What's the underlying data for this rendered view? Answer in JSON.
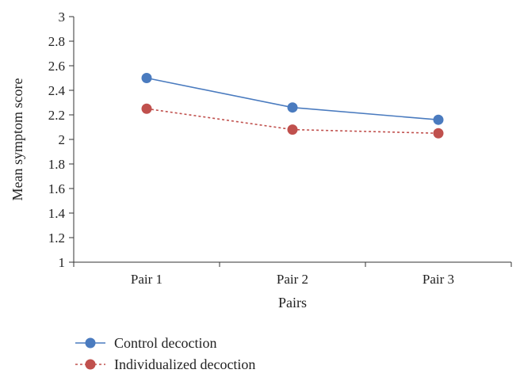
{
  "chart_data": {
    "type": "line",
    "title": "",
    "xlabel": "Pairs",
    "ylabel": "Mean symptom score",
    "categories": [
      "Pair 1",
      "Pair 2",
      "Pair 3"
    ],
    "ylim": [
      1,
      3
    ],
    "yticks": [
      "1",
      "1.2",
      "1.4",
      "1.6",
      "1.8",
      "2",
      "2.2",
      "2.4",
      "2.6",
      "2.8",
      "3"
    ],
    "grid": false,
    "legend_position": "bottom-left",
    "series": [
      {
        "name": "Control decoction",
        "values": [
          2.5,
          2.26,
          2.16
        ],
        "color": "#4a7bbf",
        "line_style": "solid",
        "marker": "circle"
      },
      {
        "name": "Individualized decoction",
        "values": [
          2.25,
          2.08,
          2.05
        ],
        "color": "#c0504d",
        "line_style": "dotted",
        "marker": "circle"
      }
    ]
  }
}
